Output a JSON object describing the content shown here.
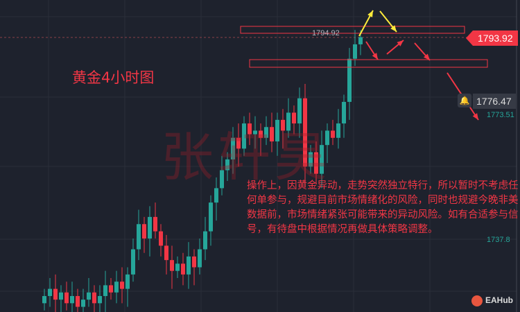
{
  "title": "黄金4小时图",
  "watermark": "张轩昊",
  "note": "操作上，因黄金异动，走势突然独立特行，所以暂时不考虑任何单参与，规避目前市场情绪化的风险，同时也规避今晚非美数据前，市场情绪紧张可能带来的异动风险。如有合适参与信号，有待盘中根据情况再做具体策略调整。",
  "price_labels": {
    "last": "1793.92",
    "high_line": "1794.92",
    "current": "1776.47",
    "level2": "1773.51",
    "level3": "1737.8"
  },
  "logo": "EAHub",
  "colors": {
    "up": "#26a69a",
    "down": "#f23645",
    "background": "#1e222d",
    "annotation": "#f23645"
  },
  "chart_data": {
    "type": "candlestick",
    "ylim": [
      1717.5,
      1800
    ],
    "closes": [
      1722,
      1724,
      1721,
      1723,
      1720,
      1722,
      1719,
      1721,
      1723,
      1720,
      1722,
      1725,
      1723,
      1726,
      1724,
      1728,
      1735,
      1742,
      1738,
      1744,
      1740,
      1736,
      1732,
      1729,
      1731,
      1728,
      1733,
      1730,
      1735,
      1740,
      1748,
      1752,
      1757,
      1760,
      1766,
      1763,
      1770,
      1767,
      1768,
      1766,
      1769,
      1765,
      1771,
      1768,
      1773,
      1770,
      1777,
      1758,
      1762,
      1756,
      1764,
      1768,
      1766,
      1770,
      1776,
      1788,
      1792,
      1794
    ],
    "start_open": 1720,
    "last_price": 1793.92,
    "levels": [
      1794.92,
      1773.51,
      1737.8
    ]
  }
}
